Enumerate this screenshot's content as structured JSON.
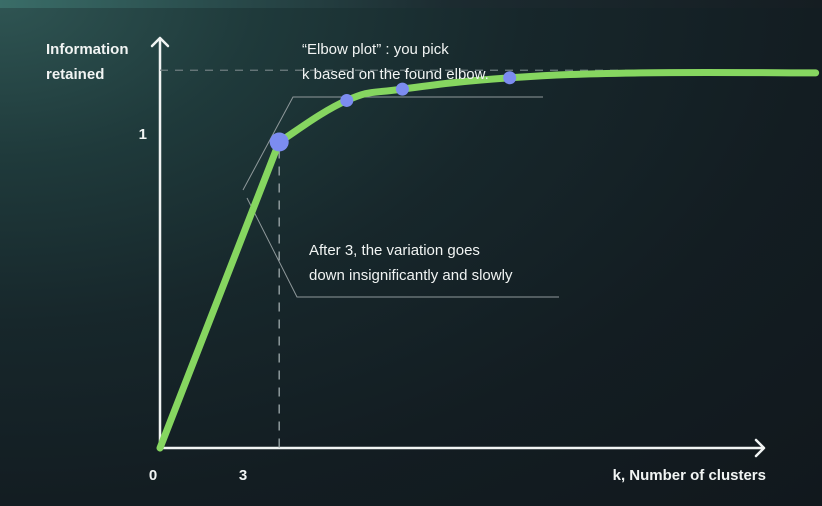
{
  "chart_data": {
    "type": "line",
    "ylabel_lines": [
      "Information",
      "retained"
    ],
    "xlabel": "k, Number of clusters",
    "x_ticks": [
      "0",
      "3"
    ],
    "y_ticks": [
      "1"
    ],
    "line_color": "#86d660",
    "marker_color": "#7c8cf0",
    "elbow_marker_color": "#7c8cf0",
    "series": [
      {
        "points": [
          {
            "x": 0,
            "y": 0
          },
          {
            "x": 3,
            "y": 0.81
          },
          {
            "x": 4.7,
            "y": 0.92
          },
          {
            "x": 6.1,
            "y": 0.95
          },
          {
            "x": 8.8,
            "y": 0.98
          },
          {
            "x": 12.1,
            "y": 0.993
          },
          {
            "x": 16.5,
            "y": 0.993
          }
        ],
        "markers": [
          {
            "x": 3,
            "y": 0.81,
            "elbow": true
          },
          {
            "x": 4.7,
            "y": 0.92
          },
          {
            "x": 6.1,
            "y": 0.95
          },
          {
            "x": 8.8,
            "y": 0.98
          }
        ]
      }
    ],
    "reference_lines": [
      {
        "orientation": "horizontal",
        "y": 1,
        "style": "dashed"
      },
      {
        "orientation": "vertical",
        "x": 3,
        "style": "dashed"
      }
    ],
    "annotations": [
      {
        "lines": [
          "“Elbow plot” : you pick",
          "k based on the found elbow."
        ]
      },
      {
        "lines": [
          "After 3, the variation goes",
          "down insignificantly and slowly"
        ]
      }
    ],
    "xlim": [
      0,
      15.2
    ],
    "ylim": [
      0,
      1.08
    ],
    "grid": false
  }
}
